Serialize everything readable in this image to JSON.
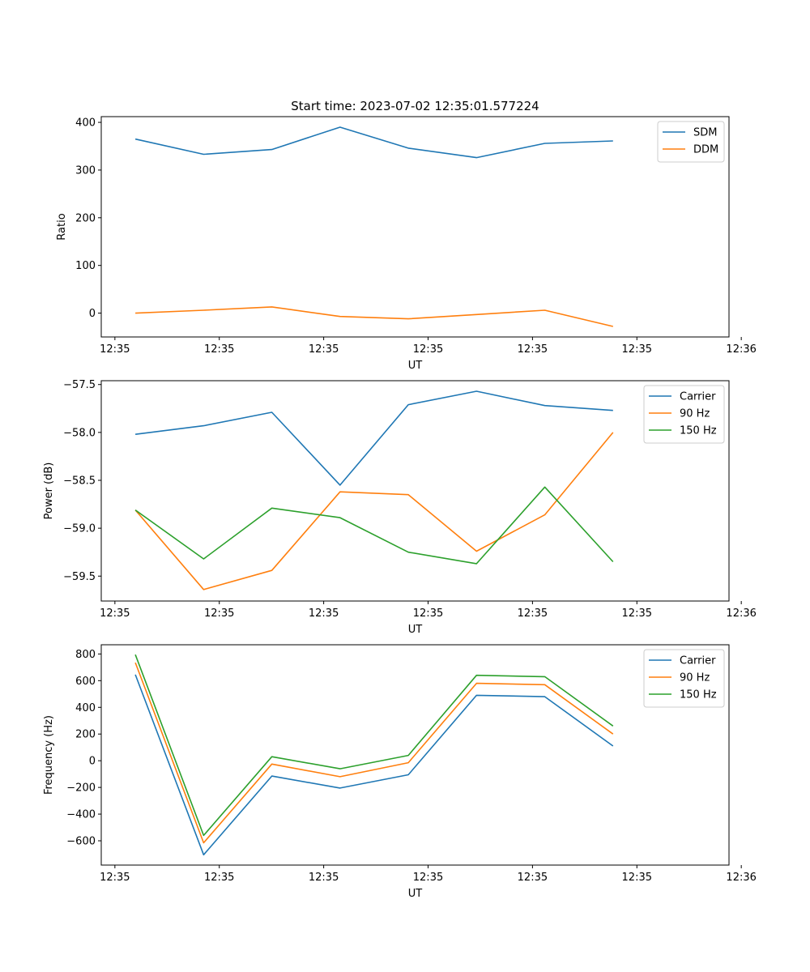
{
  "figure": {
    "title": "Start time: 2023-07-02 12:35:01.577224"
  },
  "colors": {
    "blue": "#1f77b4",
    "orange": "#ff7f0e",
    "green": "#2ca02c"
  },
  "chart_data": [
    {
      "type": "line",
      "title": "Start time: 2023-07-02 12:35:01.577224",
      "xlabel": "UT",
      "ylabel": "Ratio",
      "x": [
        1,
        2,
        3,
        4,
        5,
        6,
        7,
        8
      ],
      "xlim": [
        0.5,
        9.7
      ],
      "x_ticks": [
        0.7,
        2.23,
        3.76,
        5.29,
        6.82,
        8.35,
        9.88
      ],
      "x_tick_labels": [
        "12:35",
        "12:35",
        "12:35",
        "12:35",
        "12:35",
        "12:35",
        "12:36"
      ],
      "ylim": [
        -50,
        412
      ],
      "y_ticks": [
        0,
        100,
        200,
        300,
        400
      ],
      "y_tick_labels": [
        "0",
        "100",
        "200",
        "300",
        "400"
      ],
      "legend_position": "top-right",
      "series": [
        {
          "name": "SDM",
          "color": "#1f77b4",
          "values": [
            365,
            333,
            343,
            390,
            346,
            326,
            356,
            361
          ]
        },
        {
          "name": "DDM",
          "color": "#ff7f0e",
          "values": [
            0,
            6,
            13,
            -7,
            -12,
            -3,
            6,
            -28
          ]
        }
      ]
    },
    {
      "type": "line",
      "xlabel": "UT",
      "ylabel": "Power (dB)",
      "x": [
        1,
        2,
        3,
        4,
        5,
        6,
        7,
        8
      ],
      "xlim": [
        0.5,
        9.7
      ],
      "x_ticks": [
        0.7,
        2.23,
        3.76,
        5.29,
        6.82,
        8.35,
        9.88
      ],
      "x_tick_labels": [
        "12:35",
        "12:35",
        "12:35",
        "12:35",
        "12:35",
        "12:35",
        "12:36"
      ],
      "ylim": [
        -59.76,
        -57.46
      ],
      "y_ticks": [
        -59.5,
        -59.0,
        -58.5,
        -58.0,
        -57.5
      ],
      "y_tick_labels": [
        "−59.5",
        "−59.0",
        "−58.5",
        "−58.0",
        "−57.5"
      ],
      "legend_position": "top-right",
      "series": [
        {
          "name": "Carrier",
          "color": "#1f77b4",
          "values": [
            -58.02,
            -57.93,
            -57.79,
            -58.55,
            -57.71,
            -57.57,
            -57.72,
            -57.77
          ]
        },
        {
          "name": "90 Hz",
          "color": "#ff7f0e",
          "values": [
            -58.81,
            -59.64,
            -59.44,
            -58.62,
            -58.65,
            -59.24,
            -58.86,
            -58.0
          ]
        },
        {
          "name": "150 Hz",
          "color": "#2ca02c",
          "values": [
            -58.81,
            -59.32,
            -58.79,
            -58.89,
            -59.25,
            -59.37,
            -58.57,
            -59.35
          ]
        }
      ]
    },
    {
      "type": "line",
      "xlabel": "UT",
      "ylabel": "Frequency (Hz)",
      "x": [
        1,
        2,
        3,
        4,
        5,
        6,
        7,
        8
      ],
      "xlim": [
        0.5,
        9.7
      ],
      "x_ticks": [
        0.7,
        2.23,
        3.76,
        5.29,
        6.82,
        8.35,
        9.88
      ],
      "x_tick_labels": [
        "12:35",
        "12:35",
        "12:35",
        "12:35",
        "12:35",
        "12:35",
        "12:36"
      ],
      "ylim": [
        -782,
        869
      ],
      "y_ticks": [
        -600,
        -400,
        -200,
        0,
        200,
        400,
        600,
        800
      ],
      "y_tick_labels": [
        "−600",
        "−400",
        "−200",
        "0",
        "200",
        "400",
        "600",
        "800"
      ],
      "legend_position": "top-right",
      "series": [
        {
          "name": "Carrier",
          "color": "#1f77b4",
          "values": [
            645,
            -705,
            -115,
            -205,
            -105,
            490,
            480,
            110
          ]
        },
        {
          "name": "90 Hz",
          "color": "#ff7f0e",
          "values": [
            735,
            -615,
            -25,
            -120,
            -15,
            580,
            570,
            200
          ]
        },
        {
          "name": "150 Hz",
          "color": "#2ca02c",
          "values": [
            795,
            -560,
            30,
            -60,
            40,
            640,
            630,
            260
          ]
        }
      ]
    }
  ]
}
